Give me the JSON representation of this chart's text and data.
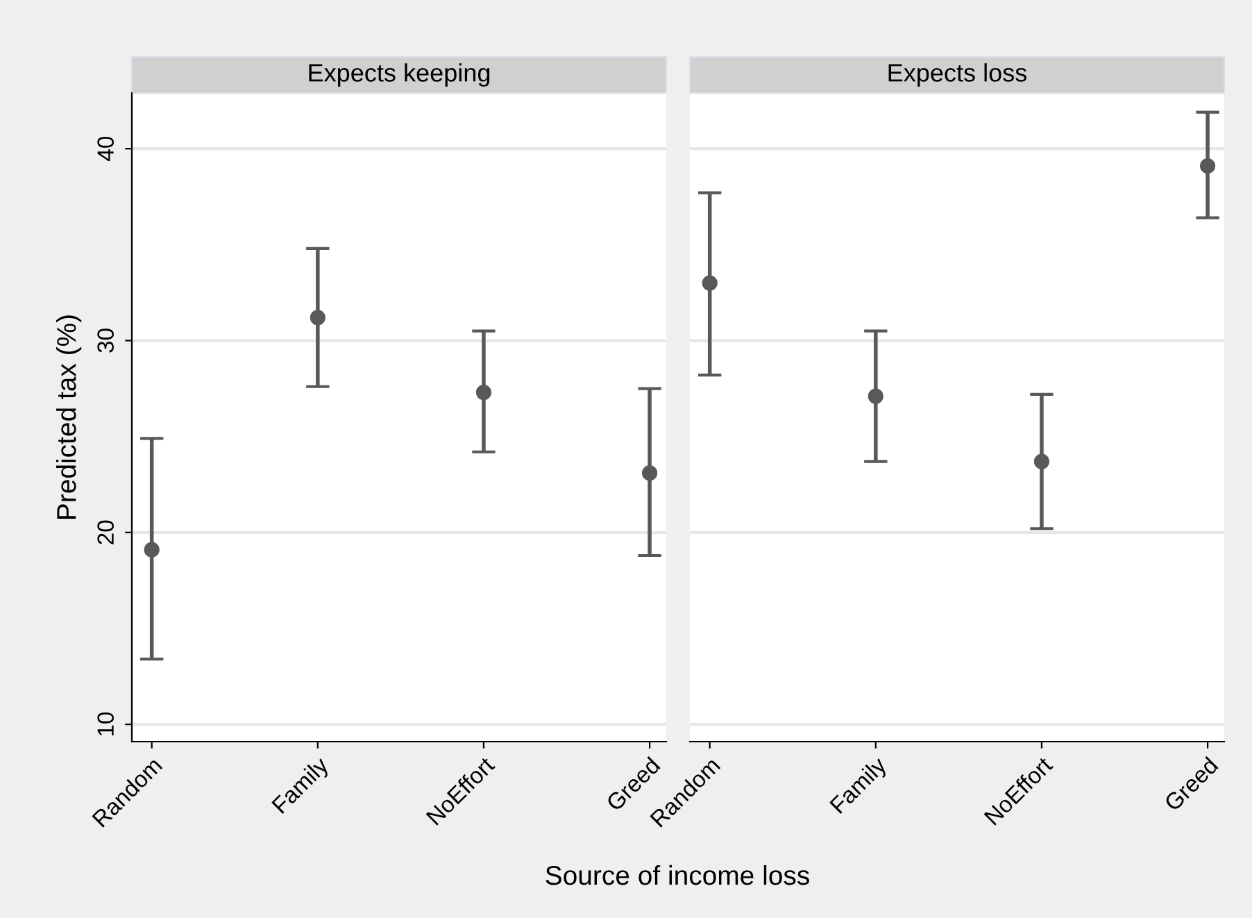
{
  "chart_data": [
    {
      "type": "scatter",
      "title": "Expects keeping",
      "xlabel": "Source of income loss",
      "ylabel": "Predicted tax (%)",
      "categories": [
        "Random",
        "Family",
        "NoEffort",
        "Greed"
      ],
      "values": [
        19.1,
        31.2,
        27.3,
        23.1
      ],
      "errors": [
        [
          13.4,
          24.9
        ],
        [
          27.6,
          34.8
        ],
        [
          24.2,
          30.5
        ],
        [
          18.8,
          27.5
        ]
      ],
      "color": "#595959",
      "marker": "circle",
      "ylim": [
        9.1,
        42.9
      ],
      "yticks": [
        10,
        20,
        30,
        40
      ],
      "grid": "y"
    },
    {
      "type": "scatter",
      "title": "Expects loss",
      "categories": [
        "Random",
        "Family",
        "NoEffort",
        "Greed"
      ],
      "values": [
        33.0,
        27.1,
        23.7,
        39.1
      ],
      "errors": [
        [
          28.2,
          37.7
        ],
        [
          23.7,
          30.5
        ],
        [
          20.2,
          27.2
        ],
        [
          36.4,
          41.9
        ]
      ],
      "color": "#595959",
      "marker": "circle",
      "ylim": [
        9.1,
        42.9
      ],
      "yticks": [
        10,
        20,
        30,
        40
      ],
      "grid": "y",
      "tick_labels": "x"
    }
  ]
}
